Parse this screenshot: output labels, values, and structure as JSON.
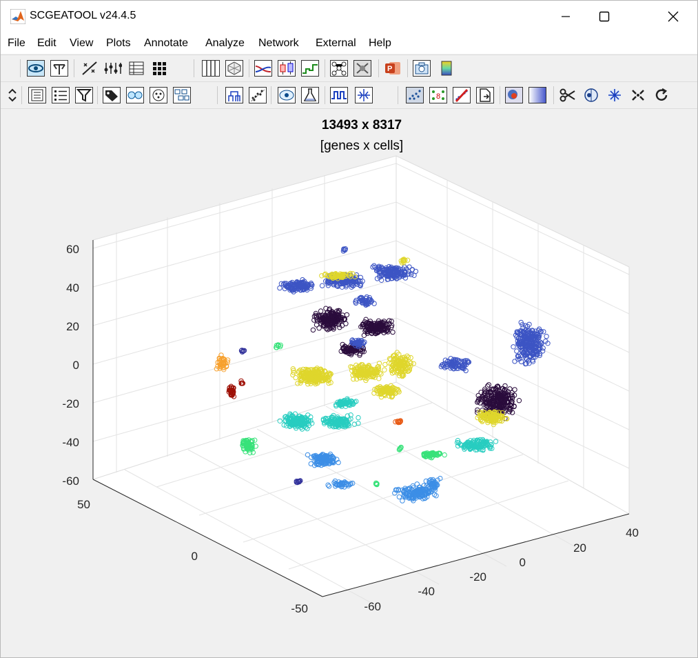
{
  "window": {
    "title": "SCGEATOOL v24.4.5",
    "controls": [
      "minimize",
      "maximize",
      "close"
    ]
  },
  "menu": [
    "File",
    "Edit",
    "View",
    "Plots",
    "Annotate",
    "Analyze",
    "Network",
    "External",
    "Help"
  ],
  "toolbar1": {
    "icons": [
      "eye-icon",
      "tree-icon",
      "marker-icon",
      "violin-icon",
      "table-icon",
      "grid-icon",
      "columns-icon",
      "hexagon-icon",
      "curve-icon",
      "boxplot-icon",
      "step-icon",
      "network-icon",
      "heatmap-icon",
      "powerpoint-icon",
      "camera-icon",
      "colorbar-icon"
    ]
  },
  "toolbar2": {
    "icons": [
      "updown-icon",
      "list-icon",
      "bullets-icon",
      "filter-icon",
      "tag-icon",
      "faces-icon",
      "cell-icon",
      "modules-icon",
      "dendrogram-icon",
      "scatter-icon",
      "eye-cell-icon",
      "flask-icon",
      "pulse-icon",
      "split-icon",
      "scatter3d-icon",
      "legend-icon",
      "brush-icon",
      "doc-icon",
      "heatmap2-icon",
      "gradient-icon",
      "scissors-icon",
      "circle-cell-icon",
      "snowflake-icon",
      "collapse-icon",
      "refresh-icon"
    ]
  },
  "plot": {
    "title": "13493 x 8317",
    "subtitle": "[genes x cells]",
    "z_ticks": [
      "60",
      "40",
      "20",
      "0",
      "-20",
      "-40",
      "-60"
    ],
    "left_ticks": [
      "50",
      "0",
      "-50"
    ],
    "right_ticks": [
      "-60",
      "-40",
      "-20",
      "0",
      "20",
      "40"
    ],
    "colors": {
      "royal_blue": "#3d55c4",
      "dark_purple": "#2a0c3c",
      "yellow": "#dfd62c",
      "cyan": "#28cdc0",
      "light_blue": "#3c8ee6",
      "green": "#38e27a",
      "orange": "#f7a12e",
      "dark_red": "#9e1006",
      "red_orange": "#e85a14",
      "navy": "#30309a"
    }
  }
}
